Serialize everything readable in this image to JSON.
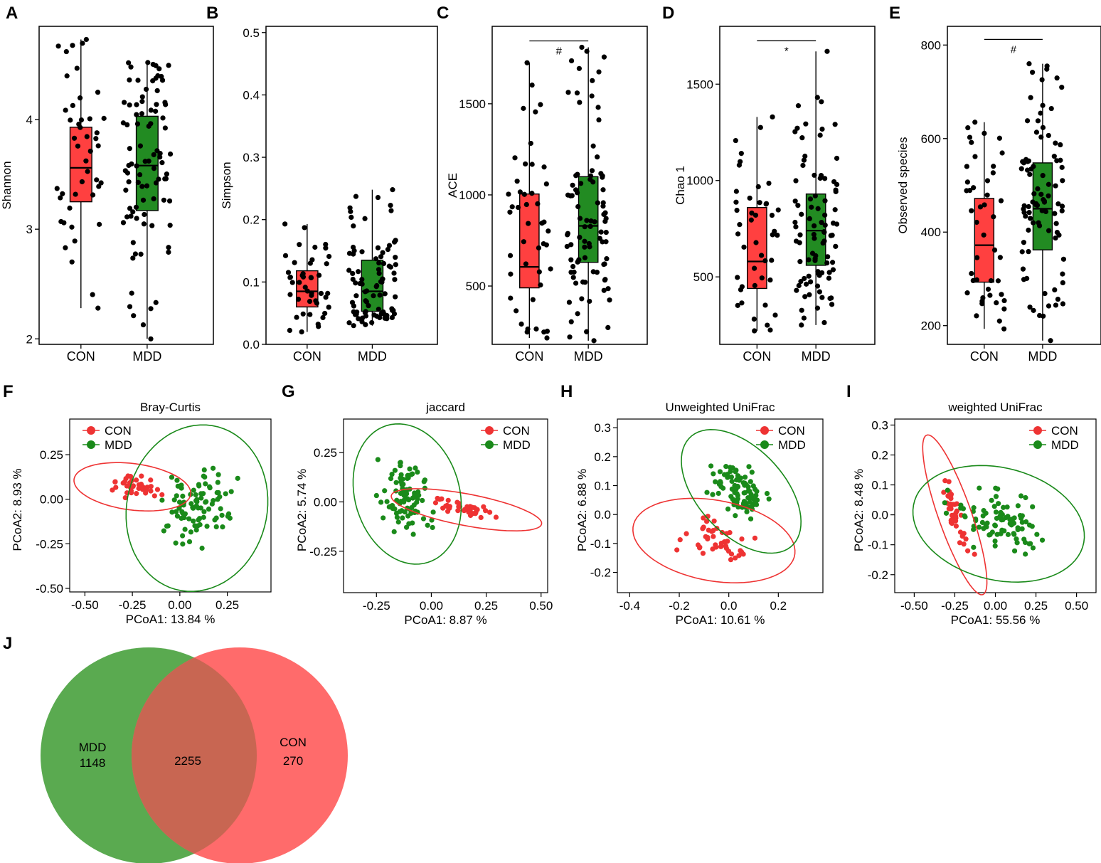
{
  "figure_type": "multi-panel figure",
  "colors": {
    "con": "#ee3333",
    "mdd": "#1a8a1a",
    "con_fill": "#ff4040",
    "mdd_fill": "#228b22",
    "points": "#000000",
    "venn_mdd": "#5aaa50",
    "venn_con": "#ff6b6b"
  },
  "chart_data": [
    {
      "panel": "A",
      "type": "box",
      "ylabel": "Shannon",
      "categories": [
        "CON",
        "MDD"
      ],
      "ylim": [
        1.95,
        4.85
      ],
      "yticks": [
        2,
        3,
        4
      ],
      "boxes": [
        {
          "group": "CON",
          "q1": 3.25,
          "median": 3.56,
          "q3": 3.93,
          "whisker_low": 2.28,
          "whisker_high": 4.73,
          "n_points": 45
        },
        {
          "group": "MDD",
          "q1": 3.17,
          "median": 3.58,
          "q3": 4.03,
          "whisker_low": 2.0,
          "whisker_high": 4.52,
          "n_points": 90
        }
      ]
    },
    {
      "panel": "B",
      "type": "box",
      "ylabel": "Simpson",
      "categories": [
        "CON",
        "MDD"
      ],
      "ylim": [
        0.0,
        0.51
      ],
      "yticks": [
        "0.0",
        "0.1",
        "0.2",
        "0.3",
        "0.4",
        "0.5"
      ],
      "boxes": [
        {
          "group": "CON",
          "q1": 0.06,
          "median": 0.085,
          "q3": 0.118,
          "whisker_low": 0.02,
          "whisker_high": 0.193,
          "n_points": 45
        },
        {
          "group": "MDD",
          "q1": 0.053,
          "median": 0.085,
          "q3": 0.135,
          "whisker_low": 0.03,
          "whisker_high": 0.248,
          "n_points": 90
        }
      ]
    },
    {
      "panel": "C",
      "type": "box",
      "ylabel": "ACE",
      "categories": [
        "CON",
        "MDD"
      ],
      "ylim": [
        180,
        1925
      ],
      "yticks": [
        500,
        1000,
        1500
      ],
      "significance": {
        "label": "#",
        "y": 1845
      },
      "boxes": [
        {
          "group": "CON",
          "q1": 490,
          "median": 605,
          "q3": 1005,
          "whisker_low": 215,
          "whisker_high": 1725,
          "n_points": 45
        },
        {
          "group": "MDD",
          "q1": 630,
          "median": 830,
          "q3": 1100,
          "whisker_low": 200,
          "whisker_high": 1810,
          "n_points": 90
        }
      ]
    },
    {
      "panel": "D",
      "type": "box",
      "ylabel": "Chao 1",
      "categories": [
        "CON",
        "MDD"
      ],
      "ylim": [
        150,
        1800
      ],
      "yticks": [
        500,
        1000,
        1500
      ],
      "significance": {
        "label": "*",
        "y": 1725
      },
      "boxes": [
        {
          "group": "CON",
          "q1": 440,
          "median": 580,
          "q3": 860,
          "whisker_low": 220,
          "whisker_high": 1330,
          "n_points": 45
        },
        {
          "group": "MDD",
          "q1": 560,
          "median": 740,
          "q3": 930,
          "whisker_low": 250,
          "whisker_high": 1670,
          "n_points": 90
        }
      ]
    },
    {
      "panel": "E",
      "type": "box",
      "ylabel": "Observed species",
      "categories": [
        "CON",
        "MDD"
      ],
      "ylim": [
        160,
        840
      ],
      "yticks": [
        200,
        400,
        600,
        800
      ],
      "significance": {
        "label": "#",
        "y": 812
      },
      "boxes": [
        {
          "group": "CON",
          "q1": 293,
          "median": 372,
          "q3": 472,
          "whisker_low": 193,
          "whisker_high": 635,
          "n_points": 45
        },
        {
          "group": "MDD",
          "q1": 362,
          "median": 450,
          "q3": 548,
          "whisker_low": 168,
          "whisker_high": 760,
          "n_points": 90
        }
      ]
    },
    {
      "panel": "F",
      "type": "scatter",
      "title": "Bray-Curtis",
      "xlabel": "PCoA1:  13.84 %",
      "ylabel": "PCoA2:  8.93 %",
      "xlim": [
        -0.58,
        0.48
      ],
      "ylim": [
        -0.52,
        0.45
      ],
      "xticks": [
        "-0.50",
        "-0.25",
        "0.00",
        "0.25"
      ],
      "yticks": [
        "-0.50",
        "-0.25",
        "0.00",
        "0.25"
      ],
      "legend": [
        "CON",
        "MDD"
      ],
      "legend_position": "top-left",
      "series": [
        {
          "name": "CON",
          "center": [
            -0.27,
            0.07
          ],
          "spread": [
            0.09,
            0.05
          ],
          "n": 40,
          "ellipse": {
            "cx": -0.25,
            "cy": 0.07,
            "rx": 0.31,
            "ry": 0.13,
            "angle": -8
          }
        },
        {
          "name": "MDD",
          "center": [
            0.06,
            -0.04
          ],
          "spread": [
            0.15,
            0.18
          ],
          "n": 90,
          "ellipse": {
            "cx": 0.09,
            "cy": -0.05,
            "rx": 0.37,
            "ry": 0.47,
            "angle": -10
          }
        }
      ]
    },
    {
      "panel": "G",
      "type": "scatter",
      "title": "jaccard",
      "xlabel": "PCoA1:  8.87 %",
      "ylabel": "PCoA2:  5.74 %",
      "xlim": [
        -0.4,
        0.53
      ],
      "ylim": [
        -0.46,
        0.42
      ],
      "xticks": [
        "-0.25",
        "0.00",
        "0.25",
        "0.50"
      ],
      "yticks": [
        "-0.25",
        "0.00",
        "0.25"
      ],
      "legend": [
        "CON",
        "MDD"
      ],
      "legend_position": "top-right",
      "series": [
        {
          "name": "CON",
          "center": [
            0.17,
            -0.05
          ],
          "spread": [
            0.1,
            0.04
          ],
          "n": 40,
          "ellipse": {
            "cx": 0.16,
            "cy": -0.04,
            "rx": 0.35,
            "ry": 0.08,
            "angle": -12
          }
        },
        {
          "name": "MDD",
          "center": [
            -0.1,
            0.07
          ],
          "spread": [
            0.11,
            0.12
          ],
          "n": 90,
          "ellipse": {
            "cx": -0.11,
            "cy": 0.04,
            "rx": 0.24,
            "ry": 0.36,
            "angle": 12
          }
        }
      ]
    },
    {
      "panel": "H",
      "type": "scatter",
      "title": "Unweighted UniFrac",
      "xlabel": "PCoA1:  10.61 %",
      "ylabel": "PCoA2:  6.88 %",
      "xlim": [
        -0.45,
        0.38
      ],
      "ylim": [
        -0.27,
        0.33
      ],
      "xticks": [
        "-0.4",
        "-0.2",
        "0.0",
        "0.2"
      ],
      "yticks": [
        "-0.2",
        "-0.1",
        "0.0",
        "0.1",
        "0.2",
        "0.3"
      ],
      "legend": [
        "CON",
        "MDD"
      ],
      "legend_position": "top-right",
      "series": [
        {
          "name": "CON",
          "center": [
            -0.07,
            -0.11
          ],
          "spread": [
            0.12,
            0.05
          ],
          "n": 45,
          "ellipse": {
            "cx": -0.06,
            "cy": -0.09,
            "rx": 0.33,
            "ry": 0.14,
            "angle": -8
          }
        },
        {
          "name": "MDD",
          "center": [
            0.03,
            0.06
          ],
          "spread": [
            0.08,
            0.09
          ],
          "n": 90,
          "ellipse": {
            "cx": 0.05,
            "cy": 0.08,
            "rx": 0.28,
            "ry": 0.16,
            "angle": -38
          }
        }
      ]
    },
    {
      "panel": "I",
      "type": "scatter",
      "title": "weighted UniFrac",
      "xlabel": "PCoA1:  55.56 %",
      "ylabel": "PCoA2:  8.48 %",
      "xlim": [
        -0.62,
        0.62
      ],
      "ylim": [
        -0.26,
        0.32
      ],
      "xticks": [
        "-0.50",
        "-0.25",
        "0.00",
        "0.25",
        "0.50"
      ],
      "yticks": [
        "-0.2",
        "-0.1",
        "0.0",
        "0.1",
        "0.2",
        "0.3"
      ],
      "legend": [
        "CON",
        "MDD"
      ],
      "legend_position": "top-right",
      "series": [
        {
          "name": "CON",
          "center": [
            -0.3,
            0.0
          ],
          "spread": [
            0.07,
            0.06
          ],
          "n": 40,
          "ellipse": {
            "cx": -0.25,
            "cy": -0.0,
            "rx": 0.32,
            "ry": 0.09,
            "angle": -55
          }
        },
        {
          "name": "MDD",
          "center": [
            0.02,
            -0.01
          ],
          "spread": [
            0.22,
            0.08
          ],
          "n": 90,
          "ellipse": {
            "cx": 0.02,
            "cy": -0.03,
            "rx": 0.53,
            "ry": 0.19,
            "angle": -5
          }
        }
      ]
    },
    {
      "panel": "J",
      "type": "venn",
      "sets": [
        {
          "name": "MDD",
          "unique": "1148"
        },
        {
          "name": "CON",
          "unique": "270"
        }
      ],
      "intersection": "2255"
    }
  ]
}
